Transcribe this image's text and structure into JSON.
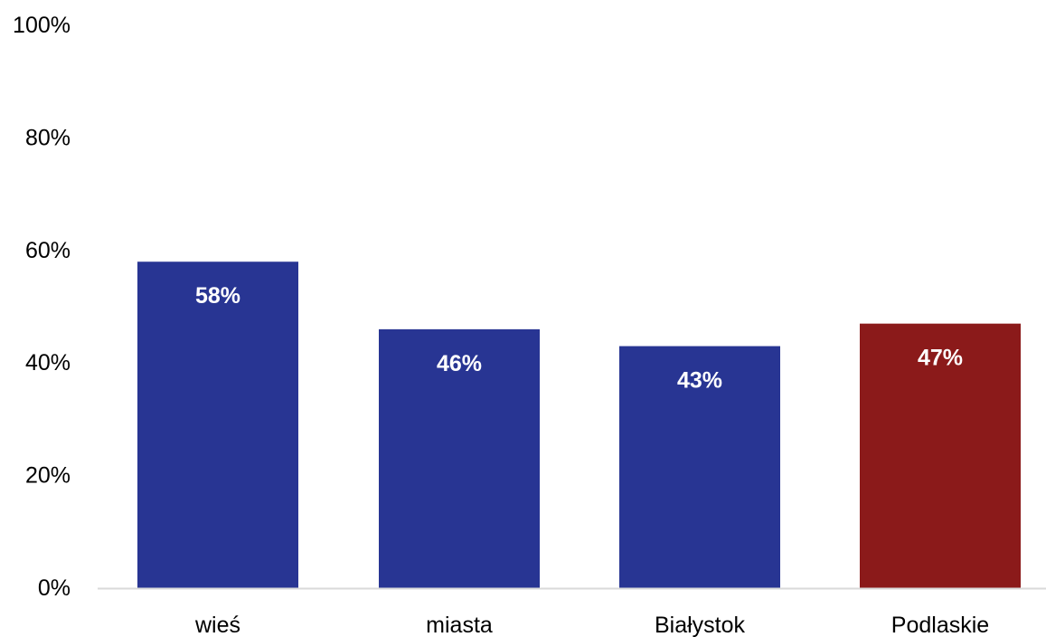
{
  "chart_data": {
    "type": "bar",
    "title": "",
    "xlabel": "",
    "ylabel": "",
    "categories": [
      "wieś",
      "miasta",
      "Białystok",
      "Podlaskie"
    ],
    "values": [
      58,
      46,
      43,
      47
    ],
    "data_labels": [
      "58%",
      "46%",
      "43%",
      "47%"
    ],
    "ylim": [
      0,
      100
    ],
    "y_ticks": [
      0,
      20,
      40,
      60,
      80,
      100
    ],
    "y_tick_labels": [
      "0%",
      "20%",
      "40%",
      "60%",
      "80%",
      "100%"
    ],
    "grid": false,
    "legend": "none",
    "colors": [
      "#283593",
      "#283593",
      "#283593",
      "#8b1a1a"
    ],
    "axis_color": "#d9d9d9"
  }
}
